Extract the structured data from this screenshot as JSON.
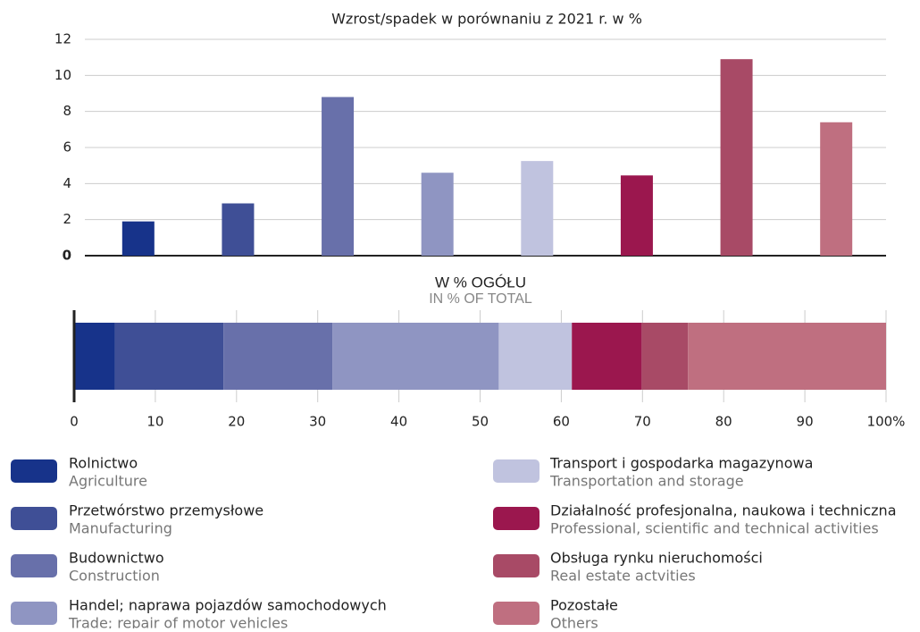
{
  "chart_data": [
    {
      "type": "bar",
      "title": "Wzrost/spadek w porównaniu z 2021 r. w %",
      "values": [
        1.9,
        2.9,
        8.8,
        4.6,
        5.25,
        4.45,
        10.9,
        7.4
      ],
      "ylim": [
        0,
        12
      ],
      "yticks": [
        0,
        2,
        4,
        6,
        8,
        10,
        12
      ],
      "grid": true
    },
    {
      "type": "stacked_barh",
      "title": "W % OGÓŁU",
      "subtitle": "IN % OF TOTAL",
      "values": [
        5,
        13.4,
        13.4,
        20.5,
        9,
        8.6,
        5.7,
        24.4
      ],
      "xlim": [
        0,
        100
      ],
      "xticks": [
        0,
        10,
        20,
        30,
        40,
        50,
        60,
        70,
        80,
        90,
        {
          "value": 100,
          "label": "100%"
        }
      ],
      "grid": true
    }
  ],
  "legend": [
    {
      "label": "Rolnictwo",
      "sublabel": "Agriculture",
      "color": "#17338a"
    },
    {
      "label": "Przetwórstwo przemysłowe",
      "sublabel": "Manufacturing",
      "color": "#3f4f96"
    },
    {
      "label": "Budownictwo",
      "sublabel": "Construction",
      "color": "#6870aa"
    },
    {
      "label": "Handel; naprawa pojazdów samochodowych",
      "sublabel": "Trade; repair of motor vehicles",
      "color": "#8f95c2"
    },
    {
      "label": "Transport i gospodarka magazynowa",
      "sublabel": "Transportation and storage",
      "color": "#c0c3df"
    },
    {
      "label": "Działalność profesjonalna, naukowa i techniczna",
      "sublabel": "Professional, scientific and technical activities",
      "color": "#9b174e"
    },
    {
      "label": "Obsługa rynku nieruchomości",
      "sublabel": "Real estate actvities",
      "color": "#a84a66"
    },
    {
      "label": "Pozostałe",
      "sublabel": "Others",
      "color": "#bf6f80"
    }
  ]
}
